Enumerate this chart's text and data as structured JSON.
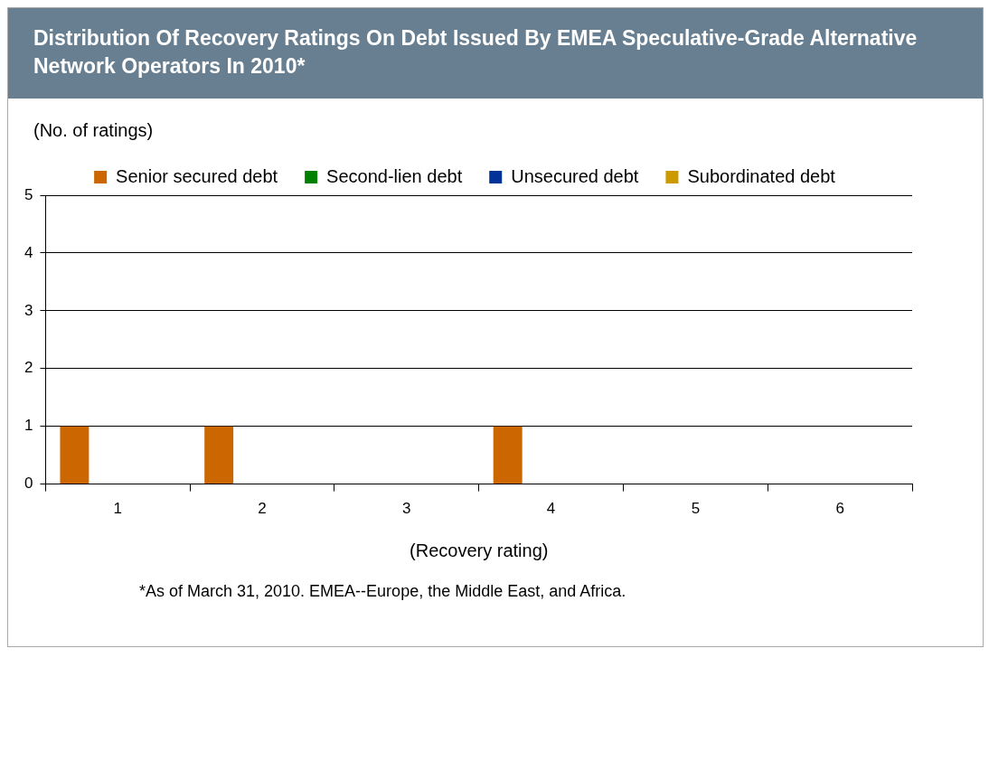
{
  "chart_data": {
    "type": "bar",
    "title": "Distribution Of Recovery Ratings On Debt Issued By EMEA Speculative-Grade Alternative Network Operators In 2010*",
    "xlabel": "(Recovery rating)",
    "ylabel": "(No. of ratings)",
    "categories": [
      "1",
      "2",
      "3",
      "4",
      "5",
      "6"
    ],
    "series": [
      {
        "name": "Senior secured debt",
        "color": "#cc6600",
        "values": [
          1,
          1,
          0,
          1,
          0,
          0
        ]
      },
      {
        "name": "Second-lien debt",
        "color": "#008000",
        "values": [
          0,
          0,
          0,
          0,
          0,
          0
        ]
      },
      {
        "name": "Unsecured debt",
        "color": "#003399",
        "values": [
          0,
          0,
          0,
          0,
          0,
          0
        ]
      },
      {
        "name": "Subordinated debt",
        "color": "#cc9900",
        "values": [
          0,
          0,
          0,
          0,
          0,
          0
        ]
      }
    ],
    "ylim": [
      0,
      5
    ],
    "yticks": [
      0,
      1,
      2,
      3,
      4,
      5
    ],
    "grid": "y",
    "legend": "top",
    "annotations": [
      "*As of March 31, 2010. EMEA--Europe, the Middle East, and Africa."
    ]
  }
}
